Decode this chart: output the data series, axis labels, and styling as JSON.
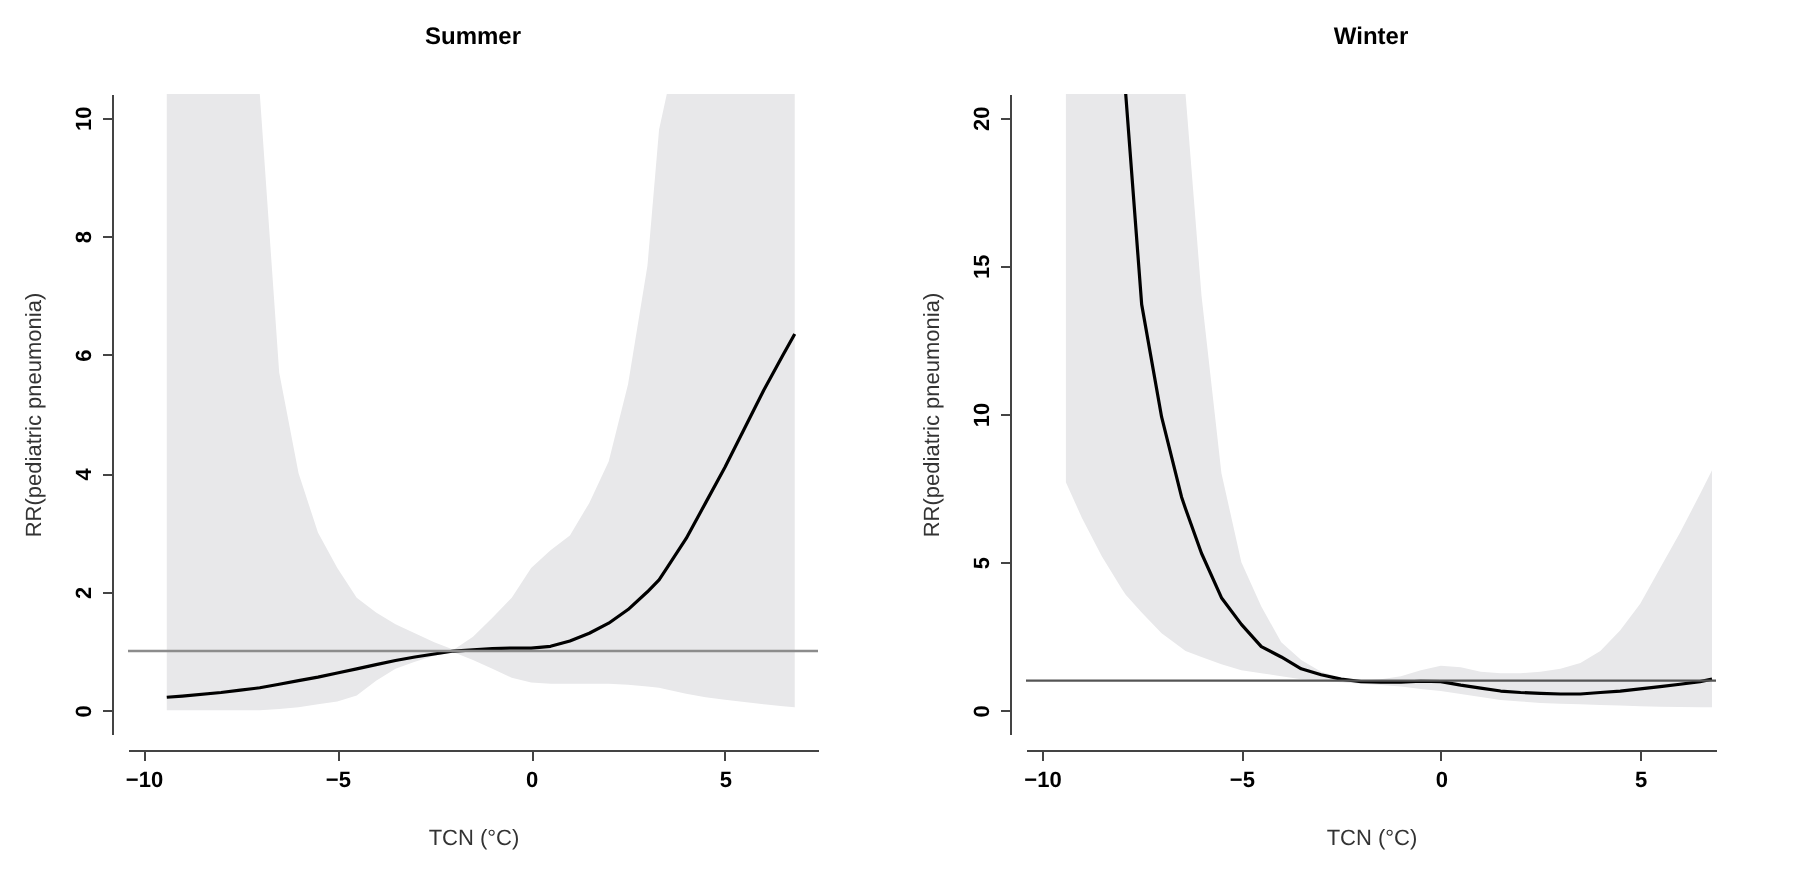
{
  "chart_data": [
    {
      "type": "line",
      "title": "Summer",
      "xlabel": "TCN (°C)",
      "ylabel": "RR(pediatric pneumonia)",
      "xlim": [
        -10.4,
        7.4
      ],
      "ylim": [
        -0.4,
        10.4
      ],
      "xticks": [
        -10,
        -5,
        0,
        5
      ],
      "yticks": [
        0,
        2,
        4,
        6,
        8,
        10
      ],
      "grid": false,
      "marker": "none",
      "line_style": "solid",
      "x": [
        -9.4,
        -9,
        -8,
        -7.5,
        -7,
        -6.5,
        -6,
        -5.5,
        -5,
        -4.5,
        -4,
        -3.5,
        -3,
        -2.5,
        -2,
        -1.5,
        -1,
        -0.5,
        0,
        0.5,
        1,
        1.5,
        2,
        2.5,
        3,
        3.3,
        3.5,
        4,
        4.5,
        5,
        5.5,
        6,
        6.5,
        6.8
      ],
      "series": [
        {
          "color": "#000000",
          "values": [
            0.22,
            0.24,
            0.3,
            0.34,
            0.38,
            0.44,
            0.5,
            0.56,
            0.63,
            0.7,
            0.77,
            0.84,
            0.9,
            0.95,
            1.0,
            1.02,
            1.04,
            1.05,
            1.05,
            1.08,
            1.17,
            1.3,
            1.47,
            1.7,
            2.0,
            2.2,
            2.4,
            2.9,
            3.5,
            4.1,
            4.75,
            5.4,
            6.0,
            6.35
          ],
          "lower": [
            0,
            0,
            0,
            0,
            0,
            0.02,
            0.05,
            0.1,
            0.15,
            0.25,
            0.5,
            0.7,
            0.82,
            0.92,
            0.98,
            0.85,
            0.7,
            0.55,
            0.47,
            0.45,
            0.45,
            0.45,
            0.45,
            0.43,
            0.4,
            0.38,
            0.35,
            0.28,
            0.22,
            0.18,
            0.14,
            0.1,
            0.07,
            0.05
          ],
          "upper": [
            10.4,
            10.4,
            10.4,
            10.4,
            10.4,
            5.7,
            4.0,
            3.0,
            2.4,
            1.9,
            1.65,
            1.45,
            1.3,
            1.15,
            1.02,
            1.24,
            1.56,
            1.9,
            2.4,
            2.7,
            2.95,
            3.5,
            4.2,
            5.5,
            7.5,
            9.8,
            10.4,
            10.4,
            10.4,
            10.4,
            10.4,
            10.4,
            10.4,
            10.4
          ]
        }
      ],
      "ref_lines": [
        {
          "axis": "y",
          "value": 1,
          "color": "#8c8c8c"
        }
      ]
    },
    {
      "type": "line",
      "title": "Winter",
      "xlabel": "TCN (°C)",
      "ylabel": "RR(pediatric pneumonia)",
      "xlim": [
        -10.4,
        6.9
      ],
      "ylim": [
        -0.8,
        20.8
      ],
      "xticks": [
        -10,
        -5,
        0,
        5
      ],
      "yticks": [
        0,
        5,
        10,
        15,
        20
      ],
      "grid": false,
      "marker": "none",
      "line_style": "solid",
      "x": [
        -9.4,
        -9,
        -8.5,
        -8,
        -7.9,
        -7.5,
        -7,
        -6.5,
        -6.4,
        -6,
        -5.5,
        -5,
        -4.5,
        -4,
        -3.5,
        -3,
        -2.5,
        -2,
        -1.5,
        -1,
        -0.5,
        0,
        0.5,
        1,
        1.5,
        2,
        2.5,
        3,
        3.5,
        4,
        4.5,
        5,
        5.5,
        6,
        6.5,
        6.8
      ],
      "series": [
        {
          "color": "#000000",
          "values": [
            null,
            null,
            null,
            null,
            20.8,
            13.7,
            9.9,
            7.2,
            6.8,
            5.3,
            3.8,
            2.9,
            2.15,
            1.8,
            1.4,
            1.2,
            1.05,
            0.97,
            0.95,
            0.95,
            0.98,
            0.97,
            0.85,
            0.75,
            0.65,
            0.6,
            0.57,
            0.55,
            0.55,
            0.6,
            0.65,
            0.72,
            0.8,
            0.88,
            0.97,
            1.05
          ],
          "lower": [
            7.7,
            6.5,
            5.2,
            4.1,
            3.9,
            3.3,
            2.6,
            2.1,
            2.0,
            1.8,
            1.55,
            1.35,
            1.25,
            1.15,
            1.05,
            1.0,
            0.95,
            0.9,
            0.85,
            0.8,
            0.72,
            0.65,
            0.55,
            0.45,
            0.35,
            0.3,
            0.25,
            0.22,
            0.2,
            0.18,
            0.16,
            0.14,
            0.12,
            0.11,
            0.1,
            0.1
          ],
          "upper": [
            20.8,
            20.8,
            20.8,
            20.8,
            20.8,
            20.8,
            20.8,
            20.8,
            20.8,
            14,
            8,
            5.0,
            3.5,
            2.3,
            1.7,
            1.3,
            1.1,
            1.0,
            1.05,
            1.15,
            1.35,
            1.5,
            1.45,
            1.3,
            1.25,
            1.25,
            1.3,
            1.4,
            1.6,
            2.0,
            2.7,
            3.6,
            4.8,
            6.0,
            7.3,
            8.1
          ]
        }
      ],
      "ref_lines": [
        {
          "axis": "y",
          "value": 1,
          "color": "#555555"
        }
      ]
    }
  ]
}
